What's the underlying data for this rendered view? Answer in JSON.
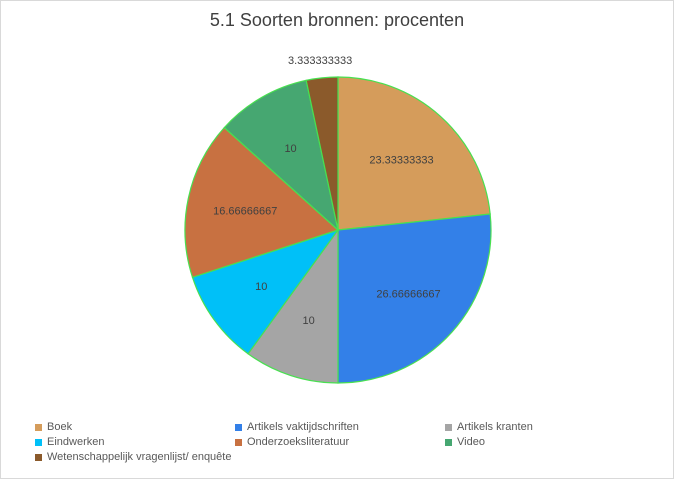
{
  "chart_data": {
    "type": "pie",
    "title": "5.1 Soorten bronnen: procenten",
    "categories": [
      "Boek",
      "Artikels vaktijdschriften",
      "Artikels kranten",
      "Eindwerken",
      "Onderzoeksliteratuur",
      "Video",
      "Wetenschappelijk vragenlijst/ enquête"
    ],
    "values": [
      23.33333333,
      26.66666667,
      10,
      10,
      16.66666667,
      10,
      3.333333333
    ],
    "data_labels": [
      "23.33333333",
      "26.66666667",
      "10",
      "10",
      "16.66666667",
      "10",
      "3.333333333"
    ],
    "colors": [
      "#d59c5b",
      "#3380e8",
      "#a5a5a5",
      "#00c0f8",
      "#c87141",
      "#46a771",
      "#8b5a2b"
    ],
    "slice_border_color": "#48e050",
    "legend_placement": "bottom"
  }
}
